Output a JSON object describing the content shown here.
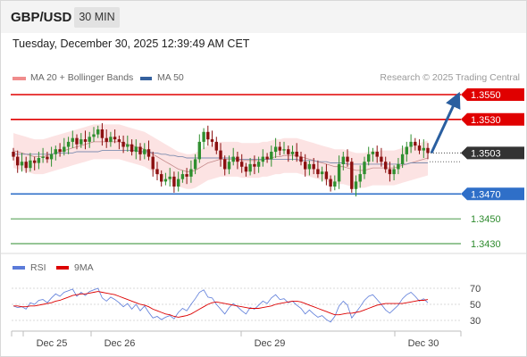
{
  "header": {
    "pair": "GBP/USD",
    "timeframe": "30 MIN"
  },
  "timestamp": "Tuesday, December 30, 2025 12:39:49 AM CET",
  "legend": [
    {
      "label": "MA 20 + Bollinger Bands",
      "color": "#f08c8c"
    },
    {
      "label": "MA 50",
      "color": "#35619e"
    }
  ],
  "credit": "Research © 2025 Trading Central",
  "rsi_legend": [
    {
      "label": "RSI",
      "color": "#5b7bd9"
    },
    {
      "label": "9MA",
      "color": "#dd0000"
    }
  ],
  "chart_data": [
    {
      "type": "candlestick",
      "price_range": [
        1.342,
        1.3565
      ],
      "x_labels": [
        "Dec 25",
        "Dec 26",
        "Dec 29",
        "Dec 30"
      ],
      "last_price": "1.3503",
      "levels": [
        {
          "value": 1.355,
          "label": "1.3550",
          "role": "target",
          "color": "#e00000"
        },
        {
          "value": 1.353,
          "label": "1.3530",
          "role": "resistance",
          "color": "#e00000"
        },
        {
          "value": 1.347,
          "label": "1.3470",
          "role": "pivot",
          "color": "#2f6fc8"
        },
        {
          "value": 1.345,
          "label": "1.3450",
          "role": "support",
          "color": "#2e8b2e"
        },
        {
          "value": 1.343,
          "label": "1.3430",
          "role": "support",
          "color": "#2e8b2e"
        }
      ],
      "projection": {
        "from": 1.3503,
        "to": 1.355,
        "direction": "up"
      },
      "closes": [
        1.35,
        1.3493,
        1.3496,
        1.3491,
        1.3497,
        1.3495,
        1.3499,
        1.35,
        1.3498,
        1.3502,
        1.3506,
        1.3504,
        1.3508,
        1.3512,
        1.3515,
        1.351,
        1.3514,
        1.3512,
        1.3516,
        1.3518,
        1.3522,
        1.3515,
        1.3512,
        1.3516,
        1.3514,
        1.3512,
        1.3508,
        1.351,
        1.3504,
        1.3508,
        1.3502,
        1.3506,
        1.35,
        1.349,
        1.3486,
        1.348,
        1.3482,
        1.3484,
        1.3476,
        1.3482,
        1.3486,
        1.3484,
        1.349,
        1.3498,
        1.3512,
        1.352,
        1.3514,
        1.3512,
        1.3505,
        1.3498,
        1.349,
        1.3496,
        1.35,
        1.3496,
        1.3492,
        1.3488,
        1.3494,
        1.3492,
        1.3496,
        1.35,
        1.3498,
        1.3504,
        1.3508,
        1.3505,
        1.3506,
        1.3502,
        1.3504,
        1.35,
        1.3496,
        1.349,
        1.3494,
        1.349,
        1.3486,
        1.3488,
        1.3482,
        1.3476,
        1.348,
        1.3494,
        1.35,
        1.3496,
        1.3474,
        1.348,
        1.3486,
        1.3496,
        1.3502,
        1.3504,
        1.35,
        1.3496,
        1.349,
        1.3486,
        1.349,
        1.3494,
        1.3502,
        1.3508,
        1.3512,
        1.3509,
        1.3505,
        1.3507,
        1.3503
      ],
      "ma20": [
        1.3505,
        1.3504,
        1.3503,
        1.3502,
        1.3501,
        1.35,
        1.35,
        1.35,
        1.3501,
        1.3502,
        1.3503,
        1.3504,
        1.3505,
        1.3506,
        1.3507,
        1.3508,
        1.3509,
        1.351,
        1.3511,
        1.3512,
        1.3512,
        1.3512,
        1.3512,
        1.3512,
        1.3512,
        1.3512,
        1.3511,
        1.351,
        1.3509,
        1.3508,
        1.3507,
        1.3506,
        1.3504,
        1.3502,
        1.35,
        1.3498,
        1.3496,
        1.3494,
        1.3492,
        1.349,
        1.3489,
        1.3488,
        1.3488,
        1.3489,
        1.3491,
        1.3493,
        1.3495,
        1.3496,
        1.3497,
        1.3498,
        1.3498,
        1.3498,
        1.3498,
        1.3498,
        1.3497,
        1.3497,
        1.3497,
        1.3497,
        1.3497,
        1.3498,
        1.3498,
        1.3499,
        1.35,
        1.35,
        1.3501,
        1.3501,
        1.3501,
        1.3501,
        1.35,
        1.3499,
        1.3498,
        1.3497,
        1.3496,
        1.3495,
        1.3494,
        1.3493,
        1.3492,
        1.3492,
        1.3492,
        1.3491,
        1.349,
        1.3489,
        1.3489,
        1.3489,
        1.349,
        1.3491,
        1.3491,
        1.3491,
        1.3491,
        1.3491,
        1.3491,
        1.3492,
        1.3493,
        1.3494,
        1.3495,
        1.3496,
        1.3497,
        1.3498,
        1.3499
      ],
      "ma50": [
        1.3502,
        1.3502,
        1.3502,
        1.3502,
        1.3502,
        1.3502,
        1.3502,
        1.3502,
        1.3502,
        1.3502,
        1.3503,
        1.3503,
        1.3503,
        1.3503,
        1.3503,
        1.3504,
        1.3504,
        1.3504,
        1.3504,
        1.3504,
        1.3504,
        1.3505,
        1.3505,
        1.3505,
        1.3505,
        1.3505,
        1.3505,
        1.3505,
        1.3505,
        1.3505,
        1.3504,
        1.3504,
        1.3504,
        1.3503,
        1.3503,
        1.3502,
        1.3502,
        1.3501,
        1.3501,
        1.35,
        1.35,
        1.3499,
        1.3499,
        1.3499,
        1.3499,
        1.3499,
        1.3499,
        1.3499,
        1.3499,
        1.3499,
        1.3499,
        1.3499,
        1.3499,
        1.3498,
        1.3498,
        1.3498,
        1.3498,
        1.3498,
        1.3498,
        1.3498,
        1.3498,
        1.3498,
        1.3498,
        1.3498,
        1.3498,
        1.3498,
        1.3498,
        1.3498,
        1.3497,
        1.3497,
        1.3497,
        1.3497,
        1.3496,
        1.3496,
        1.3496,
        1.3495,
        1.3495,
        1.3495,
        1.3495,
        1.3494,
        1.3494,
        1.3494,
        1.3494,
        1.3494,
        1.3494,
        1.3494,
        1.3494,
        1.3494,
        1.3494,
        1.3494,
        1.3494,
        1.3494,
        1.3494,
        1.3494,
        1.3495,
        1.3495,
        1.3495,
        1.3495,
        1.3495
      ],
      "band_width": 0.0014
    },
    {
      "type": "line",
      "name": "RSI",
      "y_range": [
        20,
        80
      ],
      "y_ticks": [
        70,
        50,
        30
      ],
      "rsi": [
        48,
        46,
        47,
        44,
        52,
        50,
        55,
        56,
        52,
        58,
        63,
        60,
        65,
        67,
        69,
        60,
        65,
        61,
        66,
        68,
        70,
        58,
        54,
        59,
        56,
        52,
        47,
        51,
        44,
        50,
        42,
        48,
        40,
        33,
        35,
        31,
        34,
        36,
        32,
        40,
        45,
        42,
        50,
        57,
        65,
        68,
        59,
        58,
        50,
        44,
        38,
        46,
        51,
        47,
        42,
        38,
        46,
        44,
        49,
        54,
        51,
        58,
        62,
        56,
        57,
        52,
        54,
        49,
        45,
        38,
        43,
        38,
        34,
        36,
        31,
        28,
        35,
        48,
        54,
        49,
        33,
        40,
        47,
        55,
        60,
        62,
        56,
        50,
        43,
        39,
        44,
        49,
        57,
        62,
        65,
        60,
        54,
        57,
        52
      ],
      "ma9": [
        48,
        48,
        47,
        47,
        48,
        48,
        49,
        50,
        51,
        52,
        54,
        55,
        57,
        59,
        61,
        62,
        63,
        63,
        64,
        65,
        66,
        65,
        64,
        63,
        62,
        60,
        58,
        56,
        54,
        52,
        50,
        49,
        47,
        44,
        42,
        40,
        38,
        37,
        35,
        34,
        35,
        36,
        38,
        41,
        44,
        47,
        50,
        52,
        53,
        52,
        51,
        50,
        49,
        48,
        47,
        46,
        45,
        45,
        45,
        46,
        47,
        48,
        50,
        51,
        52,
        53,
        54,
        54,
        53,
        51,
        49,
        47,
        45,
        43,
        41,
        39,
        37,
        37,
        38,
        39,
        39,
        40,
        41,
        43,
        45,
        47,
        49,
        50,
        51,
        51,
        51,
        51,
        51,
        52,
        53,
        54,
        55,
        55,
        56
      ]
    }
  ]
}
